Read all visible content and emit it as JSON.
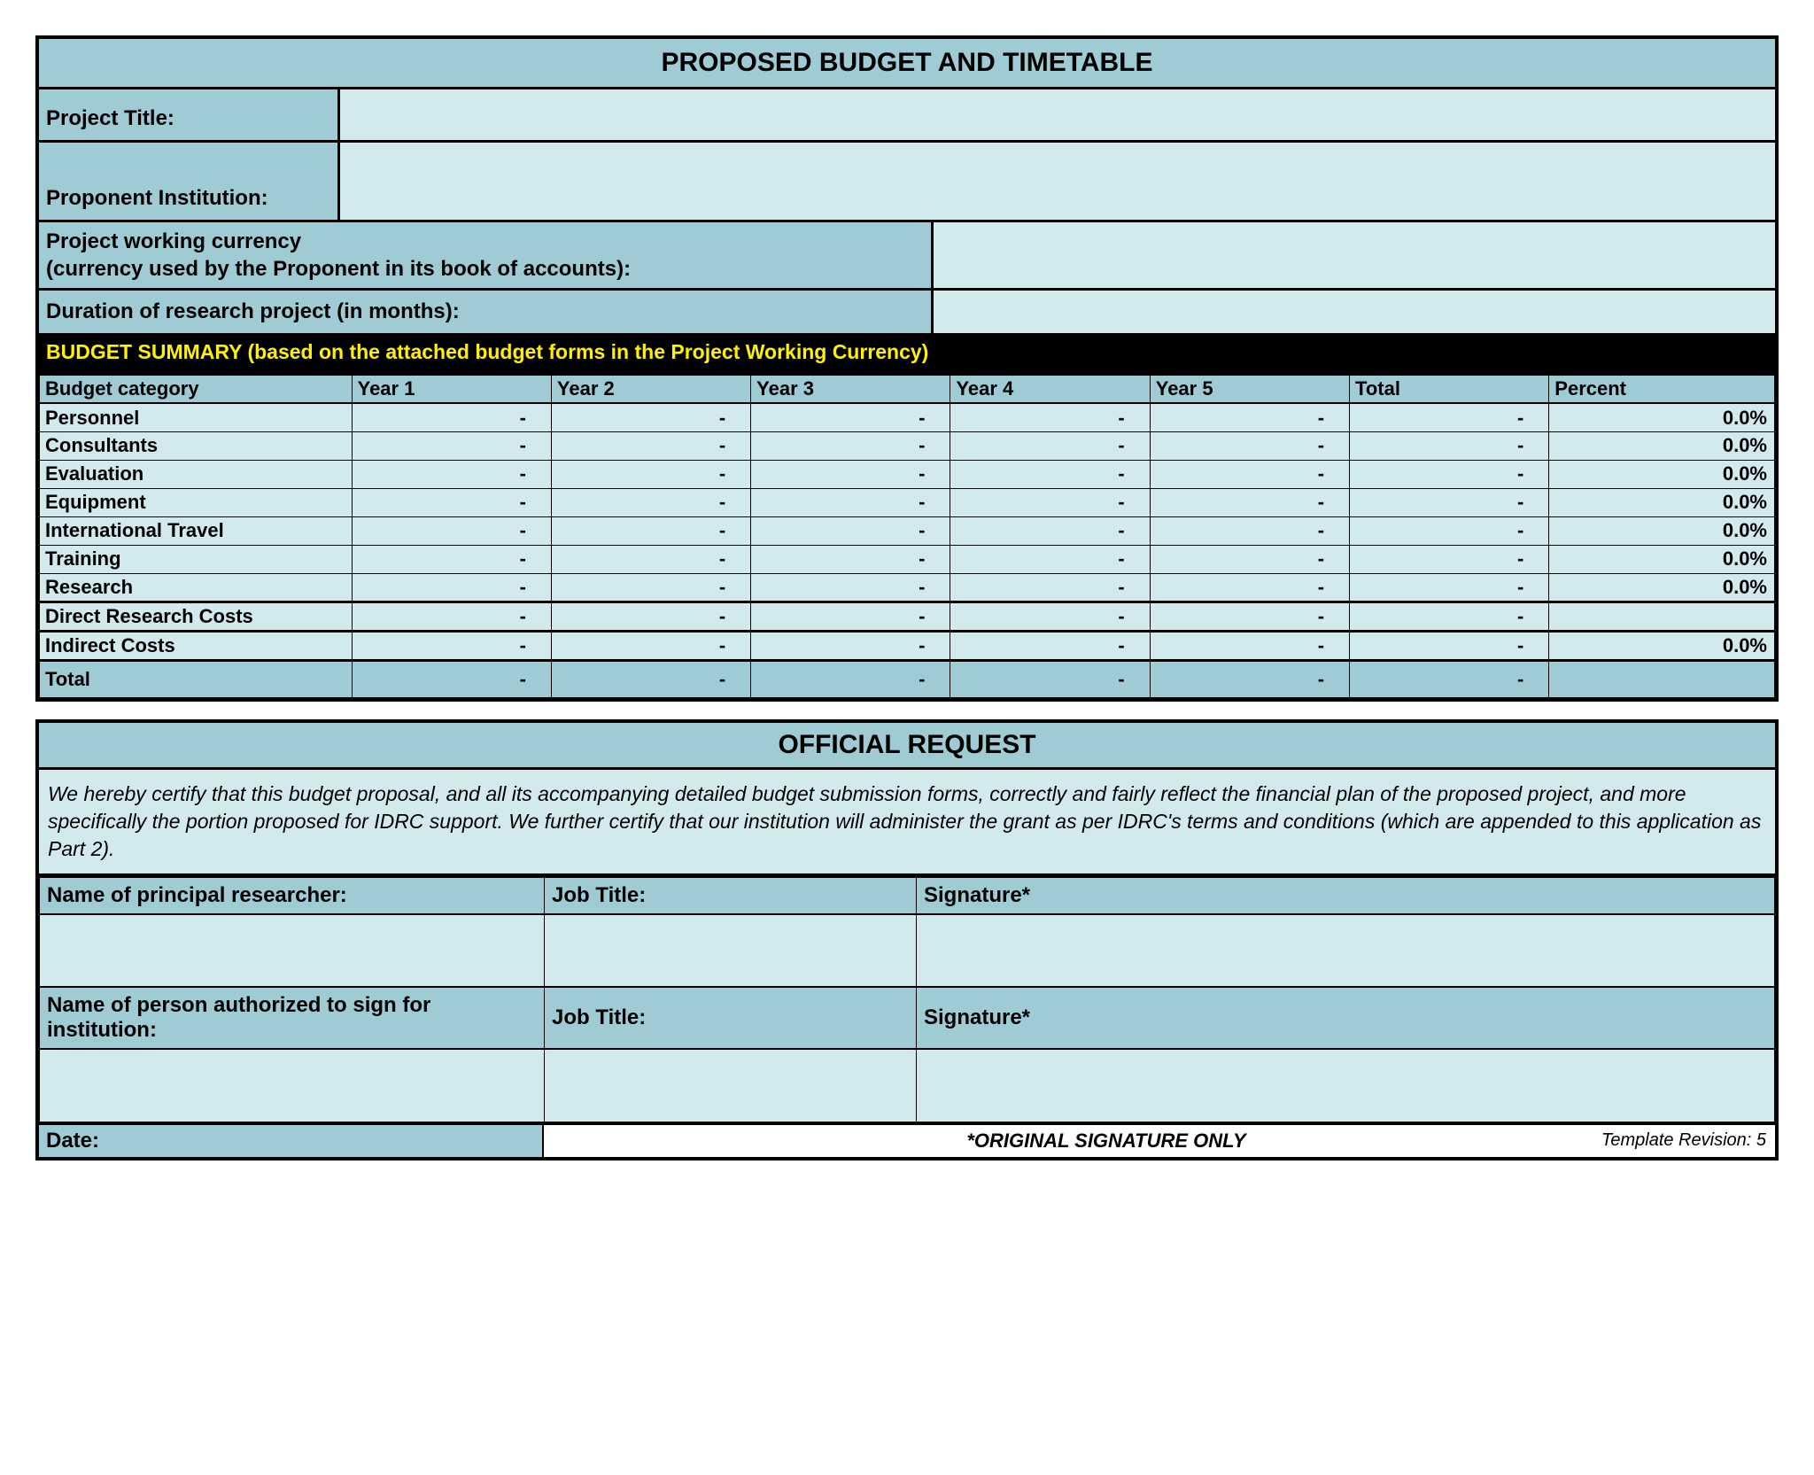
{
  "colors": {
    "header_bg": "#9fcbd5",
    "light_bg": "#d2e9ee",
    "black_band_bg": "#000000",
    "black_band_fg": "#fff200",
    "border": "#000000"
  },
  "section1": {
    "title": "PROPOSED BUDGET AND TIMETABLE",
    "project_title_label": "Project Title:",
    "proponent_label": "Proponent Institution:",
    "currency_label_line1": "Project working currency",
    "currency_label_line2": "(currency used by the Proponent in its book of accounts):",
    "duration_label": "Duration of research project (in months):",
    "summary_band": "BUDGET SUMMARY (based on the attached budget forms in the Project Working Currency)"
  },
  "budget": {
    "headers": [
      "Budget category",
      "Year 1",
      "Year 2",
      "Year 3",
      "Year 4",
      "Year 5",
      "Total",
      "Percent"
    ],
    "col_widths_pct": [
      18,
      11.5,
      11.5,
      11.5,
      11.5,
      11.5,
      11.5,
      13
    ],
    "rows": [
      {
        "cat": "Personnel",
        "y": [
          "-",
          "-",
          "-",
          "-",
          "-",
          "-"
        ],
        "pct": "0.0%"
      },
      {
        "cat": "Consultants",
        "y": [
          "-",
          "-",
          "-",
          "-",
          "-",
          "-"
        ],
        "pct": "0.0%"
      },
      {
        "cat": "Evaluation",
        "y": [
          "-",
          "-",
          "-",
          "-",
          "-",
          "-"
        ],
        "pct": "0.0%"
      },
      {
        "cat": "Equipment",
        "y": [
          "-",
          "-",
          "-",
          "-",
          "-",
          "-"
        ],
        "pct": "0.0%"
      },
      {
        "cat": "International Travel",
        "y": [
          "-",
          "-",
          "-",
          "-",
          "-",
          "-"
        ],
        "pct": "0.0%"
      },
      {
        "cat": "Training",
        "y": [
          "-",
          "-",
          "-",
          "-",
          "-",
          "-"
        ],
        "pct": "0.0%"
      },
      {
        "cat": "Research",
        "y": [
          "-",
          "-",
          "-",
          "-",
          "-",
          "-"
        ],
        "pct": "0.0%"
      }
    ],
    "direct": {
      "cat": "Direct Research Costs",
      "y": [
        "-",
        "-",
        "-",
        "-",
        "-",
        "-"
      ],
      "pct": ""
    },
    "indirect": {
      "cat": "Indirect Costs",
      "y": [
        "-",
        "-",
        "-",
        "-",
        "-",
        "-"
      ],
      "pct": "0.0%"
    },
    "total": {
      "cat": "Total",
      "y": [
        "-",
        "-",
        "-",
        "-",
        "-",
        "-"
      ],
      "pct": ""
    }
  },
  "section2": {
    "title": "OFFICIAL REQUEST",
    "cert": "We hereby certify that this budget proposal, and all its accompanying detailed budget submission forms, correctly and fairly reflect the financial plan of the proposed project, and more specifically the portion proposed for IDRC support. We further certify that our institution will administer the grant as per IDRC's terms and conditions (which are appended to this application as Part 2).",
    "row1": {
      "name_label": "Name of principal researcher:",
      "job_label": "Job Title:",
      "sig_label": "Signature*"
    },
    "row2": {
      "name_label": "Name of person authorized to sign for institution:",
      "job_label": "Job Title:",
      "sig_label": "Signature*"
    },
    "date_label": "Date:",
    "sig_note": "*ORIGINAL SIGNATURE ONLY",
    "revision": "Template Revision: 5"
  }
}
